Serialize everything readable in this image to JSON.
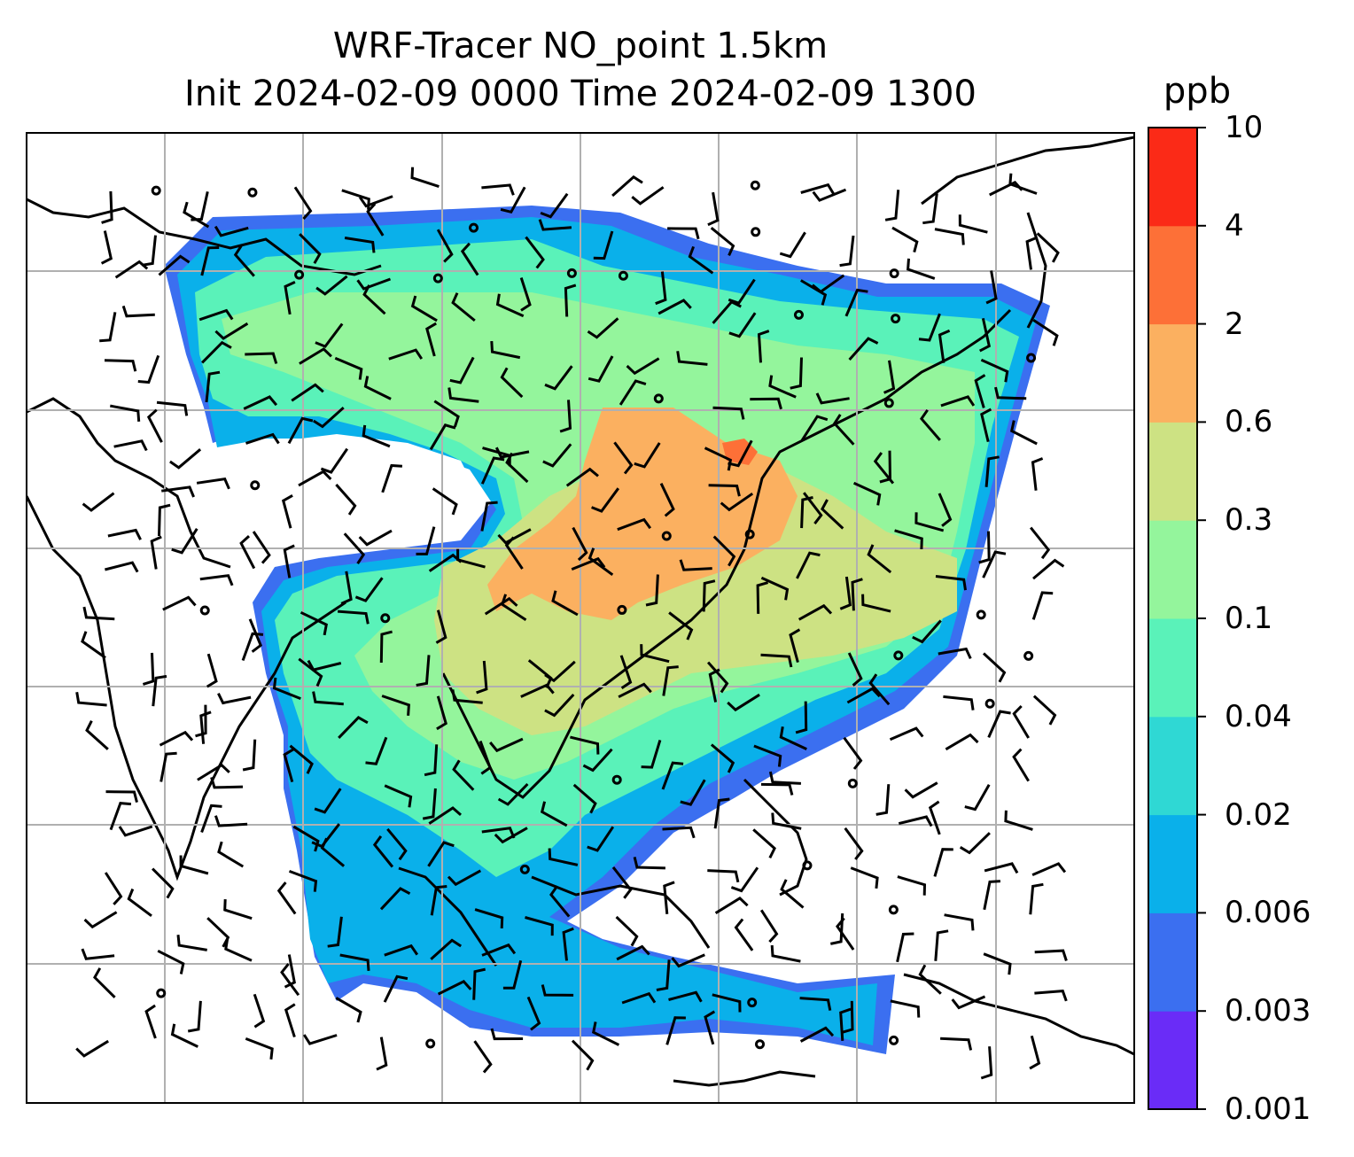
{
  "title": {
    "line1": "WRF-Tracer NO_point 1.5km",
    "line2": "Init 2024-02-09 0000 Time 2024-02-09 1300"
  },
  "colorbar": {
    "unit": "ppb",
    "levels": [
      {
        "label": "0.001",
        "color": "#6a2cf7"
      },
      {
        "label": "0.003",
        "color": "#3b6ff0"
      },
      {
        "label": "0.006",
        "color": "#0ab0ea"
      },
      {
        "label": "0.02",
        "color": "#2fd8d4"
      },
      {
        "label": "0.04",
        "color": "#5af2b9"
      },
      {
        "label": "0.1",
        "color": "#94f59c"
      },
      {
        "label": "0.3",
        "color": "#cde283"
      },
      {
        "label": "0.6",
        "color": "#fbb060"
      },
      {
        "label": "2",
        "color": "#fd7037"
      },
      {
        "label": "4",
        "color": "#fb2a17"
      }
    ],
    "top_label": "10"
  },
  "map": {
    "projection": "Lambert conformal (domain over East/Southeast Asia)",
    "gridlines": true,
    "coastlines": true,
    "wind_barbs": true
  }
}
